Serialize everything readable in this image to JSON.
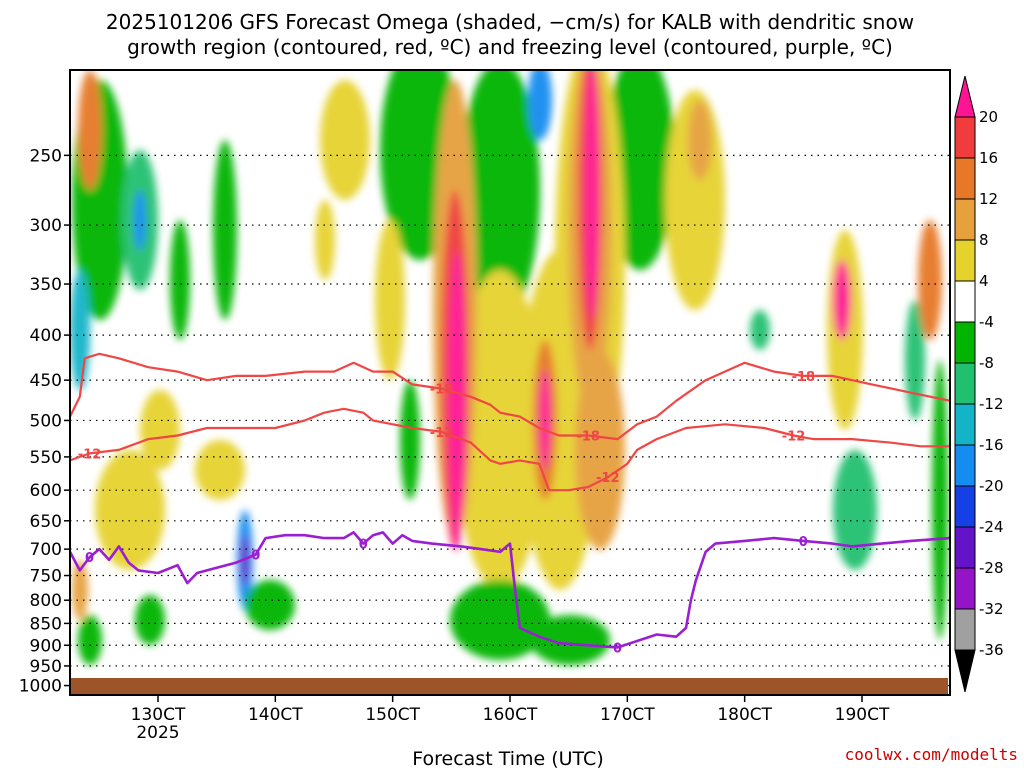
{
  "chart_data": {
    "type": "heatmap",
    "title_line1": "2025101206 GFS Forecast Omega (shaded, −cm/s) for KALB with dendritic snow",
    "title_line2": "growth region (contoured, red, ºC) and freezing level (contoured, purple, ºC)",
    "xlabel": "Forecast Time (UTC)",
    "credit": "coolwx.com/modelts",
    "x_ticks": [
      {
        "label": "130CT",
        "hour": 18
      },
      {
        "label": "140CT",
        "hour": 42
      },
      {
        "label": "150CT",
        "hour": 66
      },
      {
        "label": "160CT",
        "hour": 90
      },
      {
        "label": "170CT",
        "hour": 114
      },
      {
        "label": "180CT",
        "hour": 138
      },
      {
        "label": "190CT",
        "hour": 162
      }
    ],
    "year_label": "2025",
    "xlim_hours": [
      0,
      180
    ],
    "y_ticks": [
      250,
      300,
      350,
      400,
      450,
      500,
      550,
      600,
      650,
      700,
      750,
      800,
      850,
      900,
      950,
      1000
    ],
    "ylim_hPa": [
      200,
      1025
    ],
    "colorbar": {
      "labels": [
        "20",
        "16",
        "12",
        "8",
        "4",
        "-4",
        "-8",
        "-12",
        "-16",
        "-20",
        "-24",
        "-28",
        "-32",
        "-36"
      ],
      "colors": [
        "#ff1493",
        "#f03c3c",
        "#e67828",
        "#e6a03c",
        "#e6d22d",
        "#ffffff",
        "#00b400",
        "#20c070",
        "#14b4c8",
        "#148cf0",
        "#1440e6",
        "#6414c8",
        "#9614c8",
        "#a0a0a0",
        "#000000"
      ],
      "top_arrow_color": "#ff1493",
      "bottom_arrow_color": "#000000"
    },
    "dgz_contours": [
      {
        "label": "-18",
        "color": "#f04646",
        "points": [
          [
            0,
            495
          ],
          [
            2,
            470
          ],
          [
            3,
            425
          ],
          [
            6,
            420
          ],
          [
            10,
            425
          ],
          [
            16,
            435
          ],
          [
            22,
            440
          ],
          [
            28,
            450
          ],
          [
            34,
            445
          ],
          [
            40,
            445
          ],
          [
            48,
            440
          ],
          [
            54,
            440
          ],
          [
            58,
            430
          ],
          [
            62,
            440
          ],
          [
            66,
            440
          ],
          [
            70,
            455
          ],
          [
            76,
            460
          ],
          [
            82,
            470
          ],
          [
            86,
            480
          ],
          [
            88,
            490
          ],
          [
            92,
            495
          ],
          [
            96,
            510
          ],
          [
            100,
            520
          ],
          [
            106,
            520
          ],
          [
            112,
            525
          ],
          [
            116,
            505
          ],
          [
            120,
            495
          ],
          [
            124,
            475
          ],
          [
            130,
            450
          ],
          [
            138,
            430
          ],
          [
            144,
            440
          ],
          [
            150,
            445
          ],
          [
            156,
            445
          ],
          [
            164,
            455
          ],
          [
            172,
            465
          ],
          [
            180,
            475
          ]
        ]
      },
      {
        "label": "-12",
        "color": "#f04646",
        "points": [
          [
            0,
            555
          ],
          [
            4,
            545
          ],
          [
            10,
            540
          ],
          [
            16,
            525
          ],
          [
            22,
            520
          ],
          [
            28,
            510
          ],
          [
            34,
            510
          ],
          [
            42,
            510
          ],
          [
            48,
            500
          ],
          [
            52,
            490
          ],
          [
            56,
            485
          ],
          [
            60,
            490
          ],
          [
            62,
            500
          ],
          [
            66,
            505
          ],
          [
            70,
            510
          ],
          [
            76,
            515
          ],
          [
            82,
            530
          ],
          [
            86,
            555
          ],
          [
            88,
            560
          ],
          [
            92,
            555
          ],
          [
            96,
            560
          ],
          [
            98,
            600
          ],
          [
            102,
            600
          ],
          [
            106,
            595
          ],
          [
            110,
            580
          ],
          [
            114,
            560
          ],
          [
            116,
            540
          ],
          [
            120,
            525
          ],
          [
            126,
            510
          ],
          [
            134,
            505
          ],
          [
            142,
            510
          ],
          [
            148,
            520
          ],
          [
            152,
            525
          ],
          [
            160,
            525
          ],
          [
            168,
            530
          ],
          [
            174,
            535
          ],
          [
            180,
            535
          ]
        ]
      }
    ],
    "frz_contour": {
      "label": "0",
      "color": "#9b1ed2",
      "points": [
        [
          0,
          705
        ],
        [
          2,
          740
        ],
        [
          4,
          715
        ],
        [
          6,
          700
        ],
        [
          8,
          720
        ],
        [
          10,
          695
        ],
        [
          12,
          725
        ],
        [
          14,
          740
        ],
        [
          18,
          745
        ],
        [
          22,
          730
        ],
        [
          24,
          765
        ],
        [
          26,
          745
        ],
        [
          30,
          735
        ],
        [
          34,
          725
        ],
        [
          38,
          710
        ],
        [
          40,
          680
        ],
        [
          44,
          675
        ],
        [
          48,
          675
        ],
        [
          52,
          680
        ],
        [
          56,
          680
        ],
        [
          58,
          670
        ],
        [
          60,
          690
        ],
        [
          62,
          675
        ],
        [
          64,
          670
        ],
        [
          66,
          690
        ],
        [
          68,
          675
        ],
        [
          70,
          685
        ],
        [
          74,
          690
        ],
        [
          80,
          695
        ],
        [
          84,
          700
        ],
        [
          88,
          705
        ],
        [
          90,
          690
        ],
        [
          91,
          775
        ],
        [
          92,
          860
        ],
        [
          96,
          880
        ],
        [
          100,
          895
        ],
        [
          106,
          900
        ],
        [
          112,
          905
        ],
        [
          116,
          890
        ],
        [
          120,
          875
        ],
        [
          124,
          880
        ],
        [
          126,
          860
        ],
        [
          127,
          800
        ],
        [
          128,
          760
        ],
        [
          130,
          705
        ],
        [
          132,
          690
        ],
        [
          138,
          685
        ],
        [
          144,
          680
        ],
        [
          150,
          685
        ],
        [
          156,
          690
        ],
        [
          160,
          695
        ],
        [
          166,
          690
        ],
        [
          172,
          685
        ],
        [
          180,
          680
        ]
      ]
    }
  }
}
